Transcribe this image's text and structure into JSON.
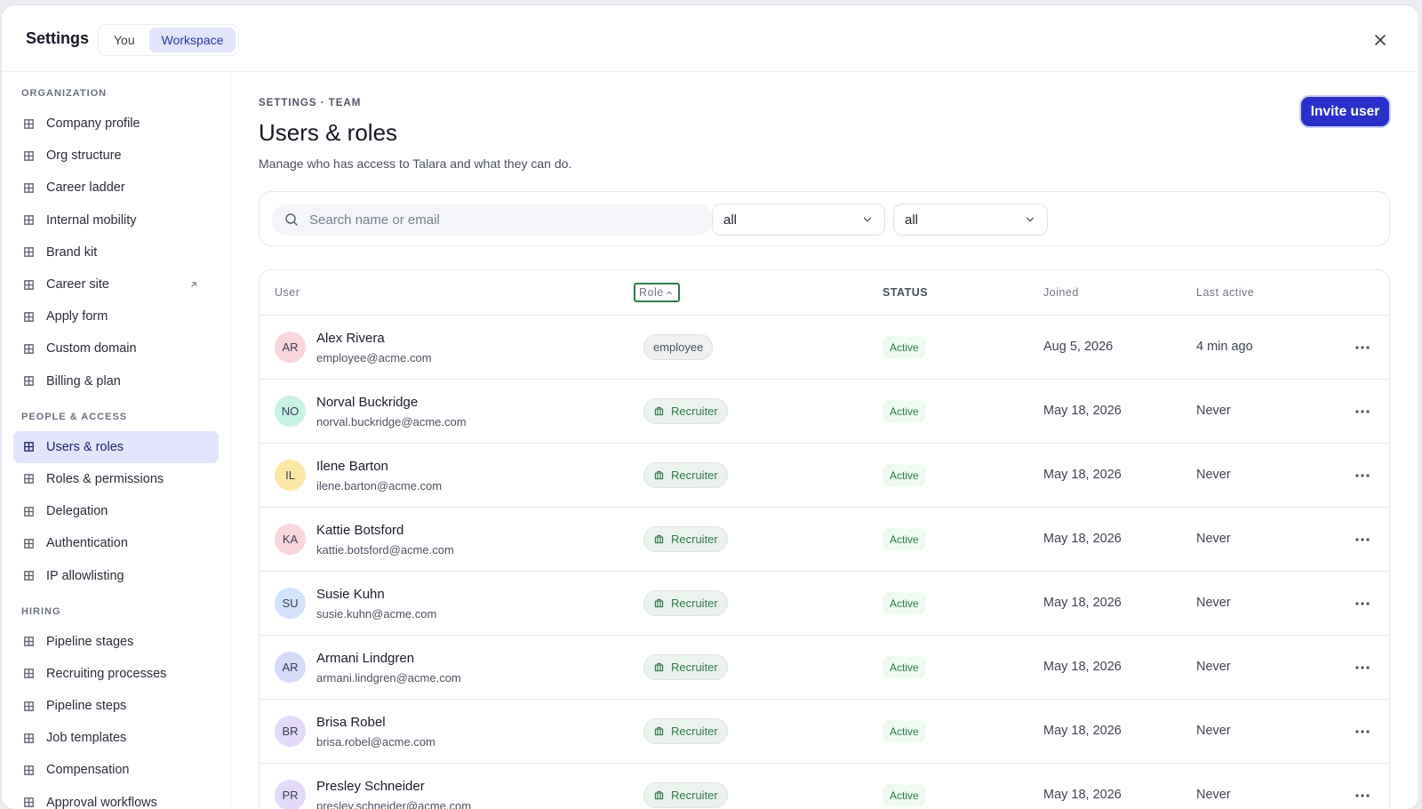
{
  "header": {
    "title": "Settings",
    "tabs": [
      {
        "label": "You",
        "active": false
      },
      {
        "label": "Workspace",
        "active": true
      }
    ]
  },
  "sidebar": {
    "sections": [
      {
        "title": "ORGANIZATION",
        "items": [
          {
            "label": "Company profile"
          },
          {
            "label": "Org structure"
          },
          {
            "label": "Career ladder"
          },
          {
            "label": "Internal mobility"
          },
          {
            "label": "Brand kit"
          },
          {
            "label": "Career site",
            "external": true
          },
          {
            "label": "Apply form"
          },
          {
            "label": "Custom domain"
          },
          {
            "label": "Billing & plan"
          }
        ]
      },
      {
        "title": "PEOPLE & ACCESS",
        "items": [
          {
            "label": "Users & roles",
            "active": true
          },
          {
            "label": "Roles & permissions"
          },
          {
            "label": "Delegation"
          },
          {
            "label": "Authentication"
          },
          {
            "label": "IP allowlisting"
          }
        ]
      },
      {
        "title": "HIRING",
        "items": [
          {
            "label": "Pipeline stages"
          },
          {
            "label": "Recruiting processes"
          },
          {
            "label": "Pipeline steps"
          },
          {
            "label": "Job templates"
          },
          {
            "label": "Compensation"
          },
          {
            "label": "Approval workflows"
          }
        ]
      }
    ]
  },
  "main": {
    "breadcrumb": "SETTINGS · TEAM",
    "title": "Users & roles",
    "subtitle": "Manage who has access to Talara and what they can do.",
    "invite_button": "Invite user",
    "search_placeholder": "Search name or email",
    "filters": [
      "all",
      "all"
    ]
  },
  "table": {
    "columns": [
      "User",
      "Role",
      "STATUS",
      "Joined",
      "Last active"
    ],
    "rows": [
      {
        "initials": "AR",
        "avatar_color": "#f9d5dc",
        "name": "Alex Rivera",
        "email": "employee@acme.com",
        "role": "employee",
        "role_color": "#4b5563",
        "status": "Active",
        "joined": "Aug 5, 2026",
        "last_active": "4 min ago"
      },
      {
        "initials": "NO",
        "avatar_color": "#c8f2e4",
        "name": "Norval Buckridge",
        "email": "norval.buckridge@acme.com",
        "role": "Recruiter",
        "role_color": "#2f7a4a",
        "status": "Active",
        "joined": "May 18, 2026",
        "last_active": "Never"
      },
      {
        "initials": "IL",
        "avatar_color": "#fbe8a6",
        "name": "Ilene Barton",
        "email": "ilene.barton@acme.com",
        "role": "Recruiter",
        "role_color": "#2f7a4a",
        "status": "Active",
        "joined": "May 18, 2026",
        "last_active": "Never"
      },
      {
        "initials": "KA",
        "avatar_color": "#f9d5dc",
        "name": "Kattie Botsford",
        "email": "kattie.botsford@acme.com",
        "role": "Recruiter",
        "role_color": "#2f7a4a",
        "status": "Active",
        "joined": "May 18, 2026",
        "last_active": "Never"
      },
      {
        "initials": "SU",
        "avatar_color": "#d3e3fb",
        "name": "Susie Kuhn",
        "email": "susie.kuhn@acme.com",
        "role": "Recruiter",
        "role_color": "#2f7a4a",
        "status": "Active",
        "joined": "May 18, 2026",
        "last_active": "Never"
      },
      {
        "initials": "AR",
        "avatar_color": "#d5dbf7",
        "name": "Armani Lindgren",
        "email": "armani.lindgren@acme.com",
        "role": "Recruiter",
        "role_color": "#2f7a4a",
        "status": "Active",
        "joined": "May 18, 2026",
        "last_active": "Never"
      },
      {
        "initials": "BR",
        "avatar_color": "#e3dafa",
        "name": "Brisa Robel",
        "email": "brisa.robel@acme.com",
        "role": "Recruiter",
        "role_color": "#2f7a4a",
        "status": "Active",
        "joined": "May 18, 2026",
        "last_active": "Never"
      },
      {
        "initials": "PR",
        "avatar_color": "#e3dafa",
        "name": "Presley Schneider",
        "email": "presley.schneider@acme.com",
        "role": "Recruiter",
        "role_color": "#2f7a4a",
        "status": "Active",
        "joined": "May 18, 2026",
        "last_active": "Never"
      }
    ]
  }
}
